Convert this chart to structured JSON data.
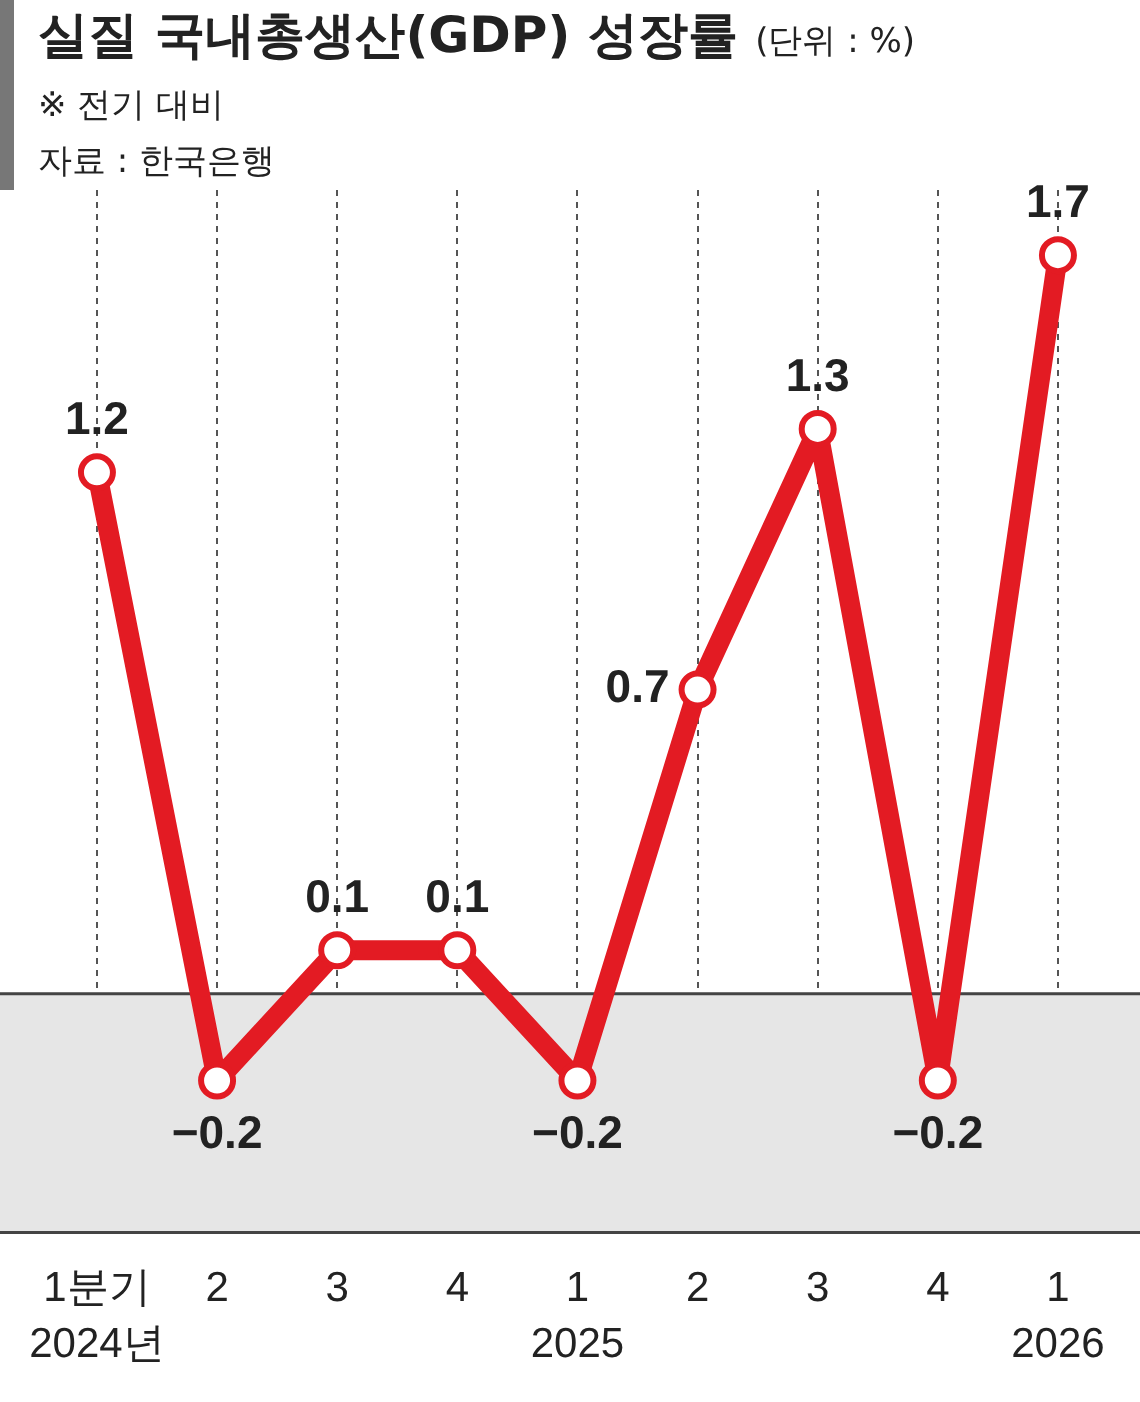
{
  "chart_data": {
    "type": "line",
    "title": "실질 국내총생산(GDP) 성장률",
    "subtitle": "※ 전기 대비",
    "annotations": [
      "(단위 : %)",
      "자료 : 한국은행"
    ],
    "categories": [
      "1분기\n2024년",
      "2",
      "3",
      "4",
      "1\n2025",
      "2",
      "3",
      "4",
      "1\n2026"
    ],
    "series": [
      {
        "color": "#e31b23",
        "values": [
          1.2,
          -0.2,
          0.1,
          0.1,
          -0.2,
          0.7,
          1.3,
          -0.2,
          1.7
        ]
      }
    ],
    "ylim": [
      -0.55,
      1.85
    ],
    "tick_labels": "x",
    "grid": "x",
    "legend": false,
    "marker": "circle",
    "line_style": "solid",
    "data_labels": true,
    "bands": [
      {
        "axis": "y",
        "from": -0.55,
        "to": 0,
        "color": "#e6e6e6"
      }
    ]
  }
}
